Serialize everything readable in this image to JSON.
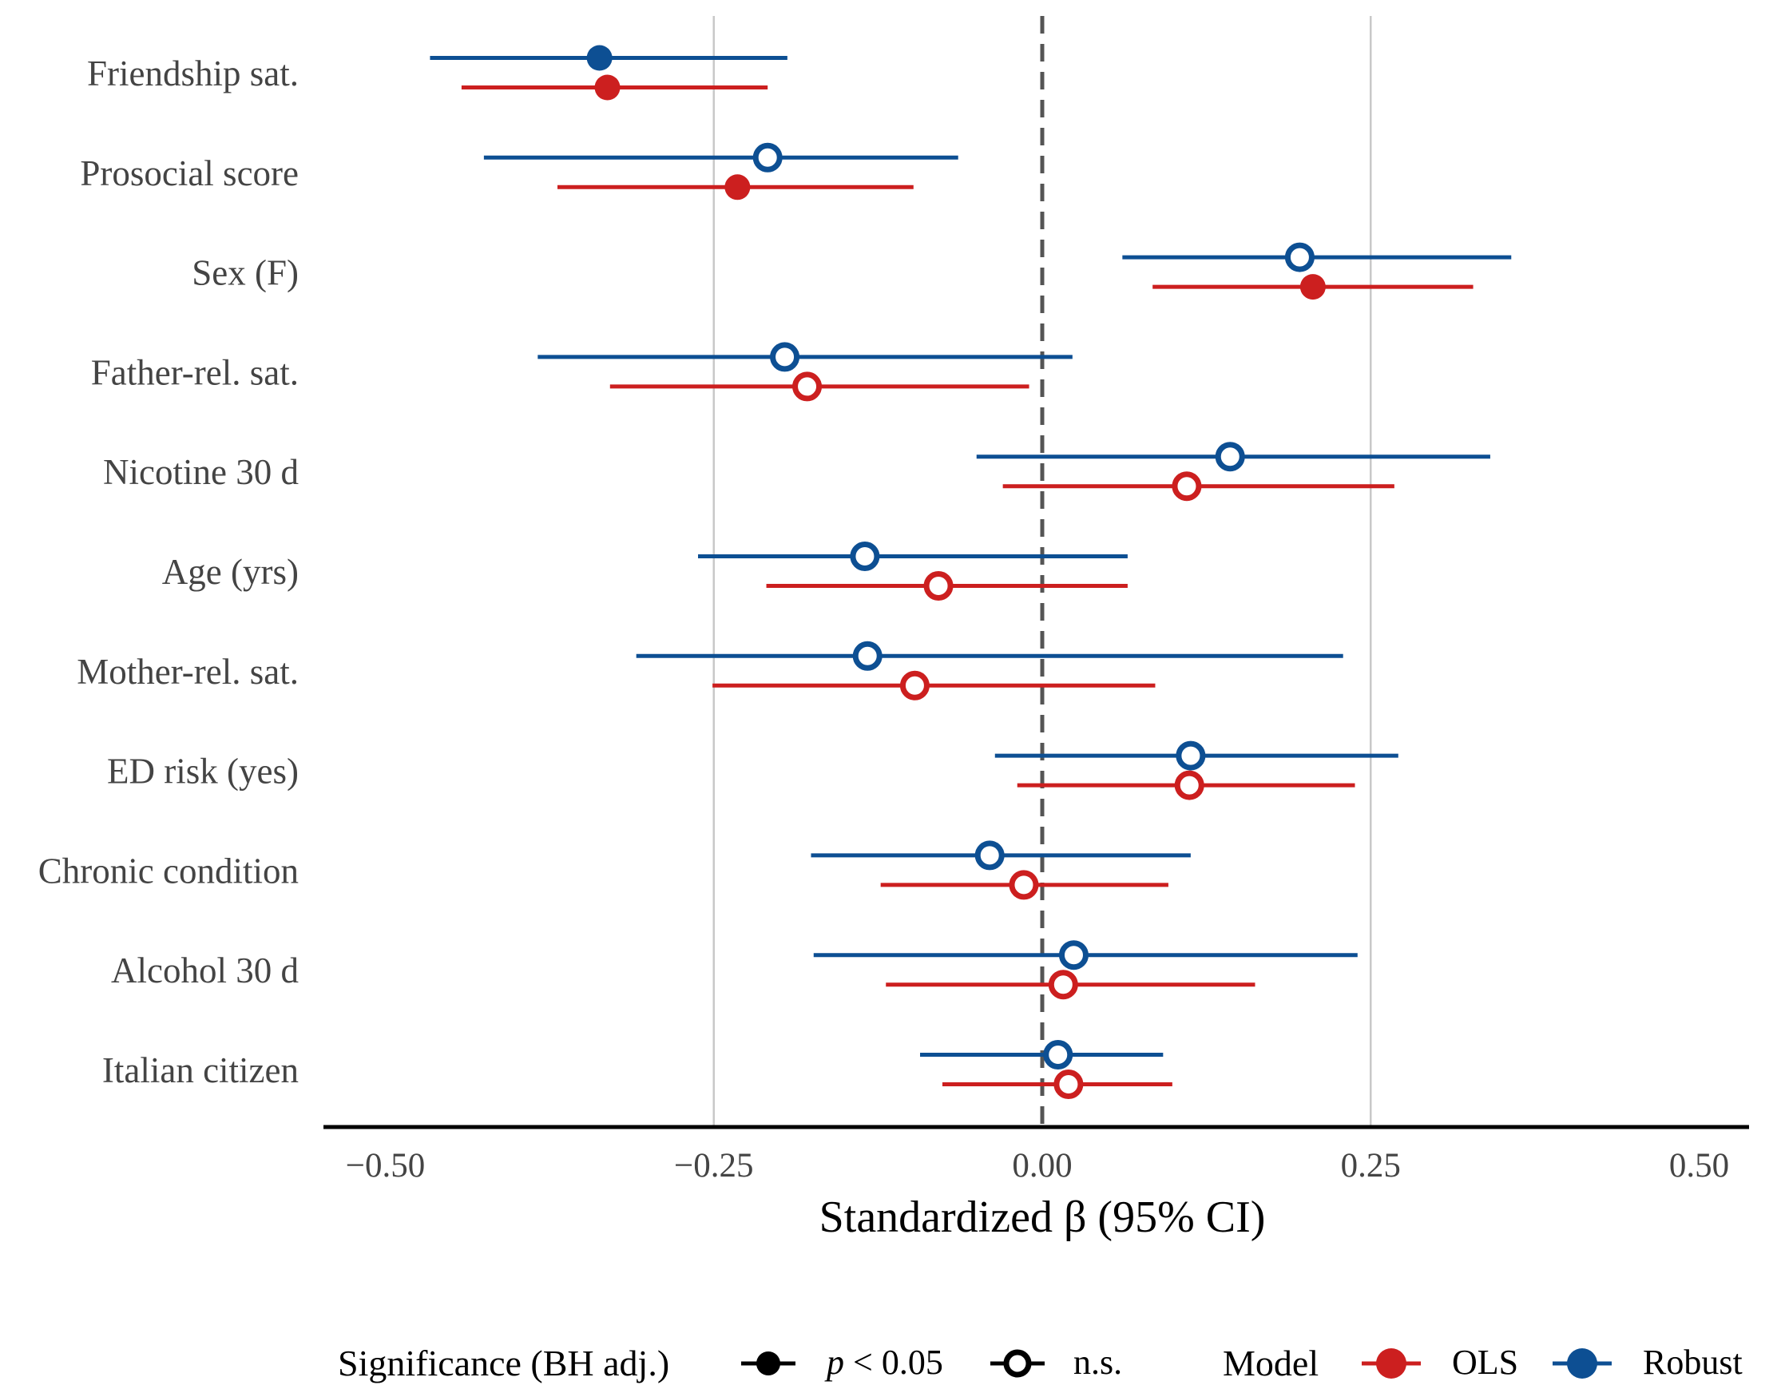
{
  "chart_data": {
    "type": "forest",
    "title": "",
    "xlabel": "Standardized β (95% CI)",
    "ylabel": "",
    "xlim": [
      -0.55,
      0.55
    ],
    "xticks": [
      -0.5,
      -0.25,
      0.0,
      0.25,
      0.5
    ],
    "xtick_labels": [
      "−0.50",
      "−0.25",
      "0.00",
      "0.25",
      "0.50"
    ],
    "grid_x": [
      -0.25,
      0.25
    ],
    "reference_line": 0.0,
    "categories": [
      "Friendship sat.",
      "Prosocial score",
      "Sex (F)",
      "Father-rel. sat.",
      "Nicotine 30 d",
      "Age (yrs)",
      "Mother-rel. sat.",
      "ED risk (yes)",
      "Chronic condition",
      "Alcohol 30 d",
      "Italian citizen"
    ],
    "series": [
      {
        "name": "Robust",
        "color": "#0d4f93",
        "estimate": [
          -0.337,
          -0.209,
          0.196,
          -0.196,
          0.143,
          -0.135,
          -0.133,
          0.113,
          -0.04,
          0.024,
          0.012
        ],
        "lower": [
          -0.466,
          -0.425,
          0.061,
          -0.384,
          -0.05,
          -0.262,
          -0.309,
          -0.036,
          -0.176,
          -0.174,
          -0.093
        ],
        "upper": [
          -0.194,
          -0.064,
          0.357,
          0.023,
          0.341,
          0.065,
          0.229,
          0.271,
          0.113,
          0.24,
          0.092
        ],
        "significant": [
          true,
          false,
          false,
          false,
          false,
          false,
          false,
          false,
          false,
          false,
          false
        ]
      },
      {
        "name": "OLS",
        "color": "#cc1f1f",
        "estimate": [
          -0.331,
          -0.232,
          0.206,
          -0.179,
          0.11,
          -0.079,
          -0.097,
          0.112,
          -0.014,
          0.016,
          0.02
        ],
        "lower": [
          -0.442,
          -0.369,
          0.084,
          -0.329,
          -0.03,
          -0.21,
          -0.251,
          -0.019,
          -0.123,
          -0.119,
          -0.076
        ],
        "upper": [
          -0.209,
          -0.098,
          0.328,
          -0.01,
          0.268,
          0.065,
          0.086,
          0.238,
          0.096,
          0.162,
          0.099
        ],
        "significant": [
          true,
          true,
          true,
          false,
          false,
          false,
          false,
          false,
          false,
          false,
          false
        ]
      }
    ],
    "legend": {
      "position": "bottom",
      "significance_title": "Significance (BH adj.)",
      "sig_label_p": "p",
      "sig_label_rest": " < 0.05",
      "ns_label": "n.s.",
      "model_title": "Model",
      "model_labels": [
        "OLS",
        "Robust"
      ]
    }
  }
}
